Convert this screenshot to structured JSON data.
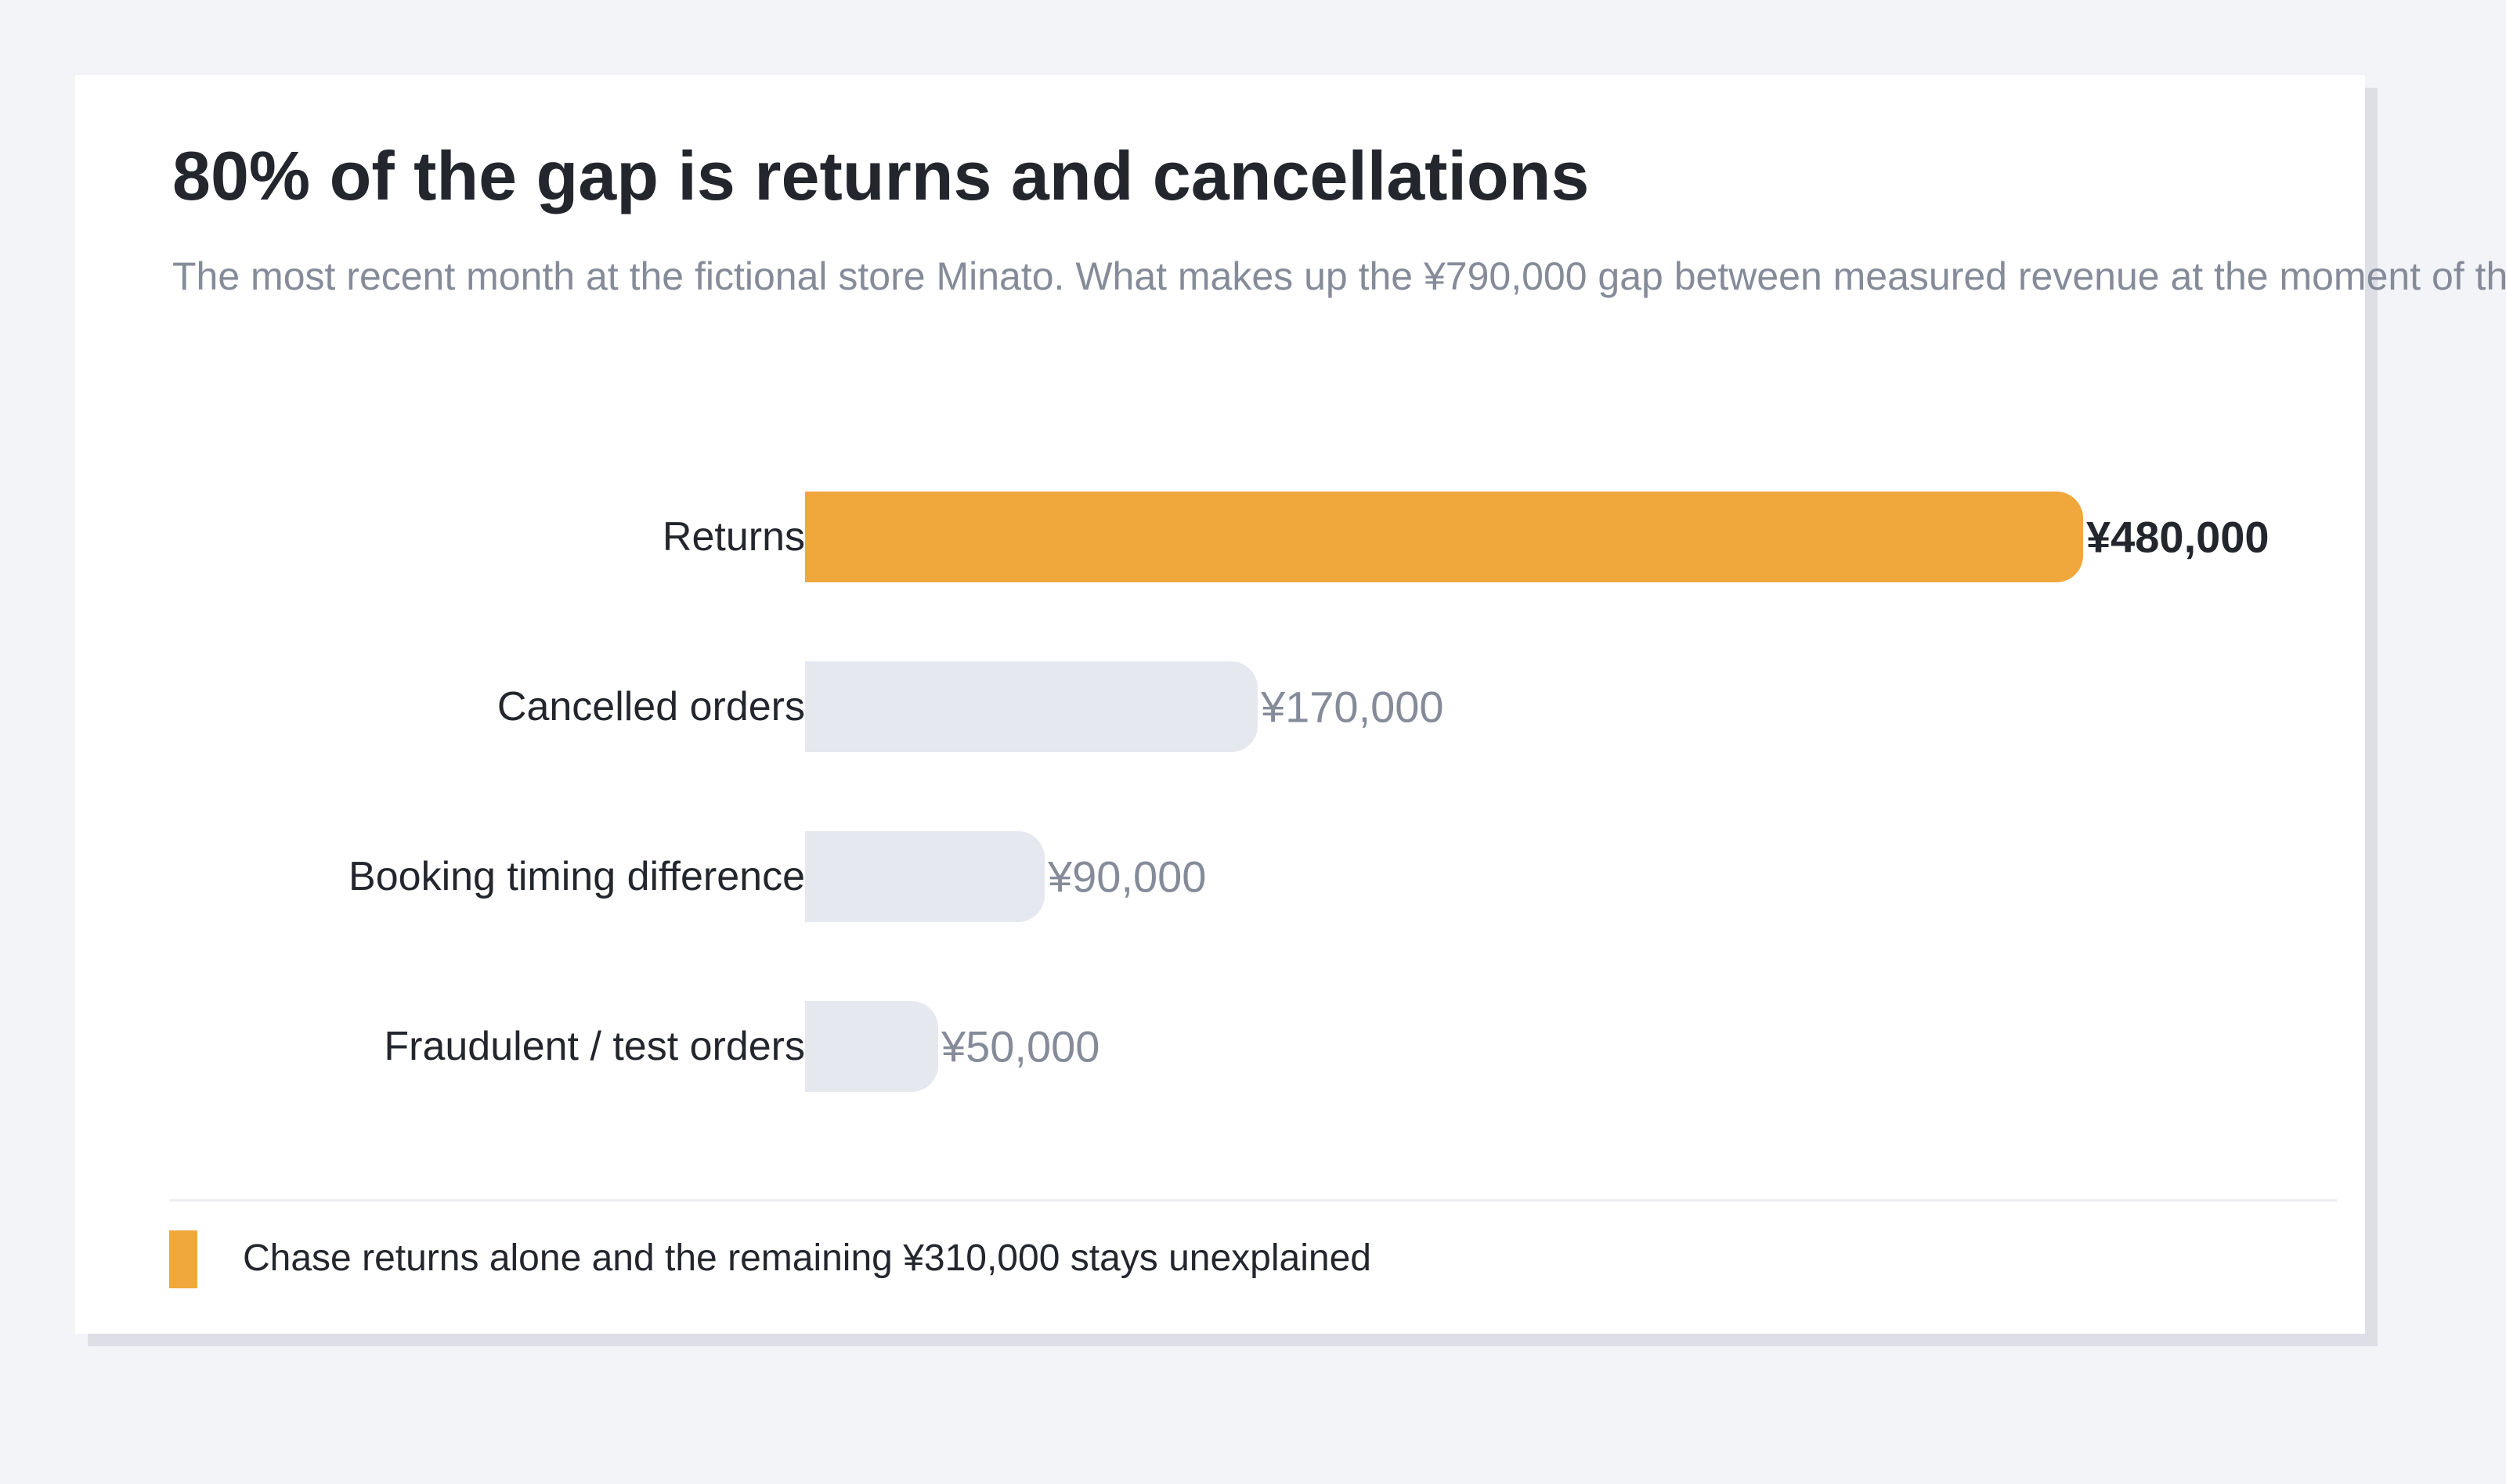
{
  "title": "80% of the gap is returns and cancellations",
  "subtitle": "The most recent month at the fictional store Minato. What makes up the ¥790,000 gap between measured revenue at the moment of th",
  "footnote": "Chase returns alone and the remaining ¥310,000 stays unexplained",
  "colors": {
    "highlight": "#f0a83c",
    "muted_bar": "#e6e8ef",
    "highlight_label": "#23262d",
    "muted_label": "#858b99",
    "category_label": "#23262d"
  },
  "chart_data": {
    "type": "bar",
    "orientation": "horizontal",
    "categories": [
      "Returns",
      "Cancelled orders",
      "Booking timing difference",
      "Fraudulent / test orders"
    ],
    "values": [
      480000,
      170000,
      90000,
      50000
    ],
    "value_labels": [
      "¥480,000",
      "¥170,000",
      "¥90,000",
      "¥50,000"
    ],
    "highlighted": [
      true,
      false,
      false,
      false
    ],
    "xlim": [
      0,
      480000
    ],
    "title": "80% of the gap is returns and cancellations",
    "xlabel": "",
    "ylabel": "",
    "grid": false
  }
}
